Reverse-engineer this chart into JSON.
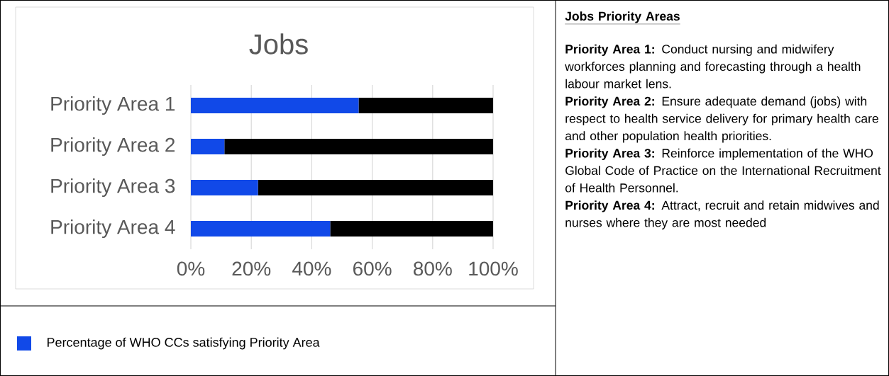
{
  "chart_data": {
    "type": "bar",
    "orientation": "horizontal",
    "stacked": true,
    "title": "Jobs",
    "categories": [
      "Priority Area 1",
      "Priority Area 2",
      "Priority Area 3",
      "Priority Area 4"
    ],
    "series": [
      {
        "name": "Percentage of WHO CCs satisfying Priority Area",
        "color": "#1149e8",
        "values": [
          55.5,
          11.1,
          22.2,
          46.1
        ]
      },
      {
        "color": "#000000",
        "values": [
          44.5,
          88.9,
          77.8,
          53.9
        ]
      }
    ],
    "xlim": [
      0,
      100
    ],
    "xticks": [
      {
        "value": 0,
        "label": "0%"
      },
      {
        "value": 20,
        "label": "20%"
      },
      {
        "value": 40,
        "label": "40%"
      },
      {
        "value": 60,
        "label": "60%"
      },
      {
        "value": 80,
        "label": "80%"
      },
      {
        "value": 100,
        "label": "100%"
      }
    ],
    "grid": "x",
    "legend": "bottom",
    "annotations": [
      "Jobs Priority Areas",
      "**Priority Area 1:** Conduct nursing and midwifery workforces planning and forecasting through a health labour market lens.",
      "**Priority Area 2:** Ensure adequate demand (jobs) with respect to health service delivery for primary health care and other population health priorities.",
      "**Priority Area 3:** Reinforce implementation of the WHO Global Code of Practice on the International Recruitment of Health Personnel.",
      "**Priority Area 4:** Attract, recruit and retain midwives and nurses where they are most needed"
    ]
  }
}
